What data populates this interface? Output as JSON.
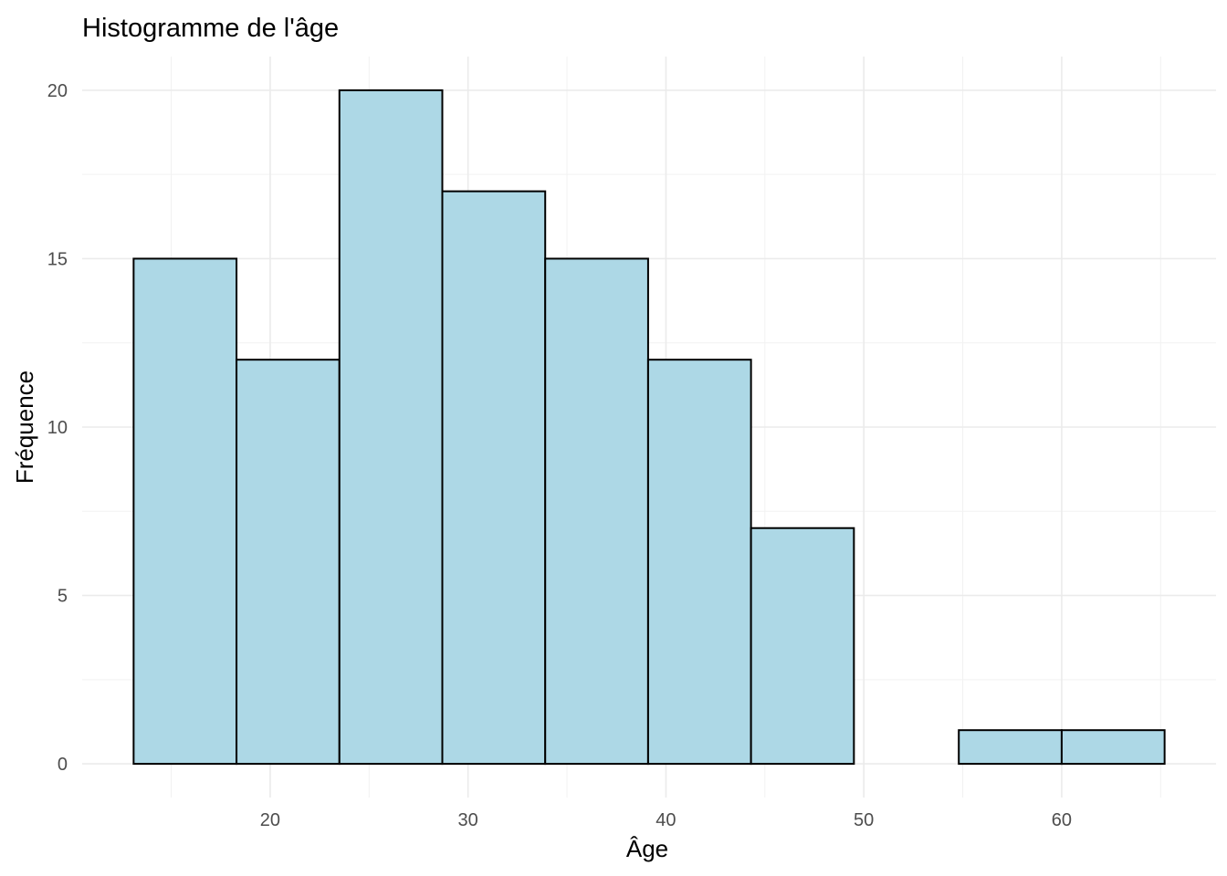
{
  "chart_data": {
    "type": "bar",
    "subtype": "histogram",
    "title": "Histogramme de l'âge",
    "xlabel": "Âge",
    "ylabel": "Fréquence",
    "bins": [
      {
        "x0": 13.1,
        "x1": 18.3,
        "count": 15
      },
      {
        "x0": 18.3,
        "x1": 23.5,
        "count": 12
      },
      {
        "x0": 23.5,
        "x1": 28.7,
        "count": 20
      },
      {
        "x0": 28.7,
        "x1": 33.9,
        "count": 17
      },
      {
        "x0": 33.9,
        "x1": 39.1,
        "count": 15
      },
      {
        "x0": 39.1,
        "x1": 44.3,
        "count": 12
      },
      {
        "x0": 44.3,
        "x1": 49.5,
        "count": 7
      },
      {
        "x0": 49.5,
        "x1": 54.8,
        "count": 0
      },
      {
        "x0": 54.8,
        "x1": 60.0,
        "count": 1
      },
      {
        "x0": 60.0,
        "x1": 65.2,
        "count": 1
      }
    ],
    "xlim": [
      10.5,
      67.8
    ],
    "ylim": [
      -1.0,
      21.0
    ],
    "x_ticks": [
      20,
      30,
      40,
      50,
      60
    ],
    "y_ticks": [
      0,
      5,
      10,
      15,
      20
    ],
    "grid": true,
    "bar_fill": "#add8e6",
    "bar_stroke": "#000000",
    "grid_color": "#ebebeb",
    "tick_label_color": "#4d4d4d"
  }
}
